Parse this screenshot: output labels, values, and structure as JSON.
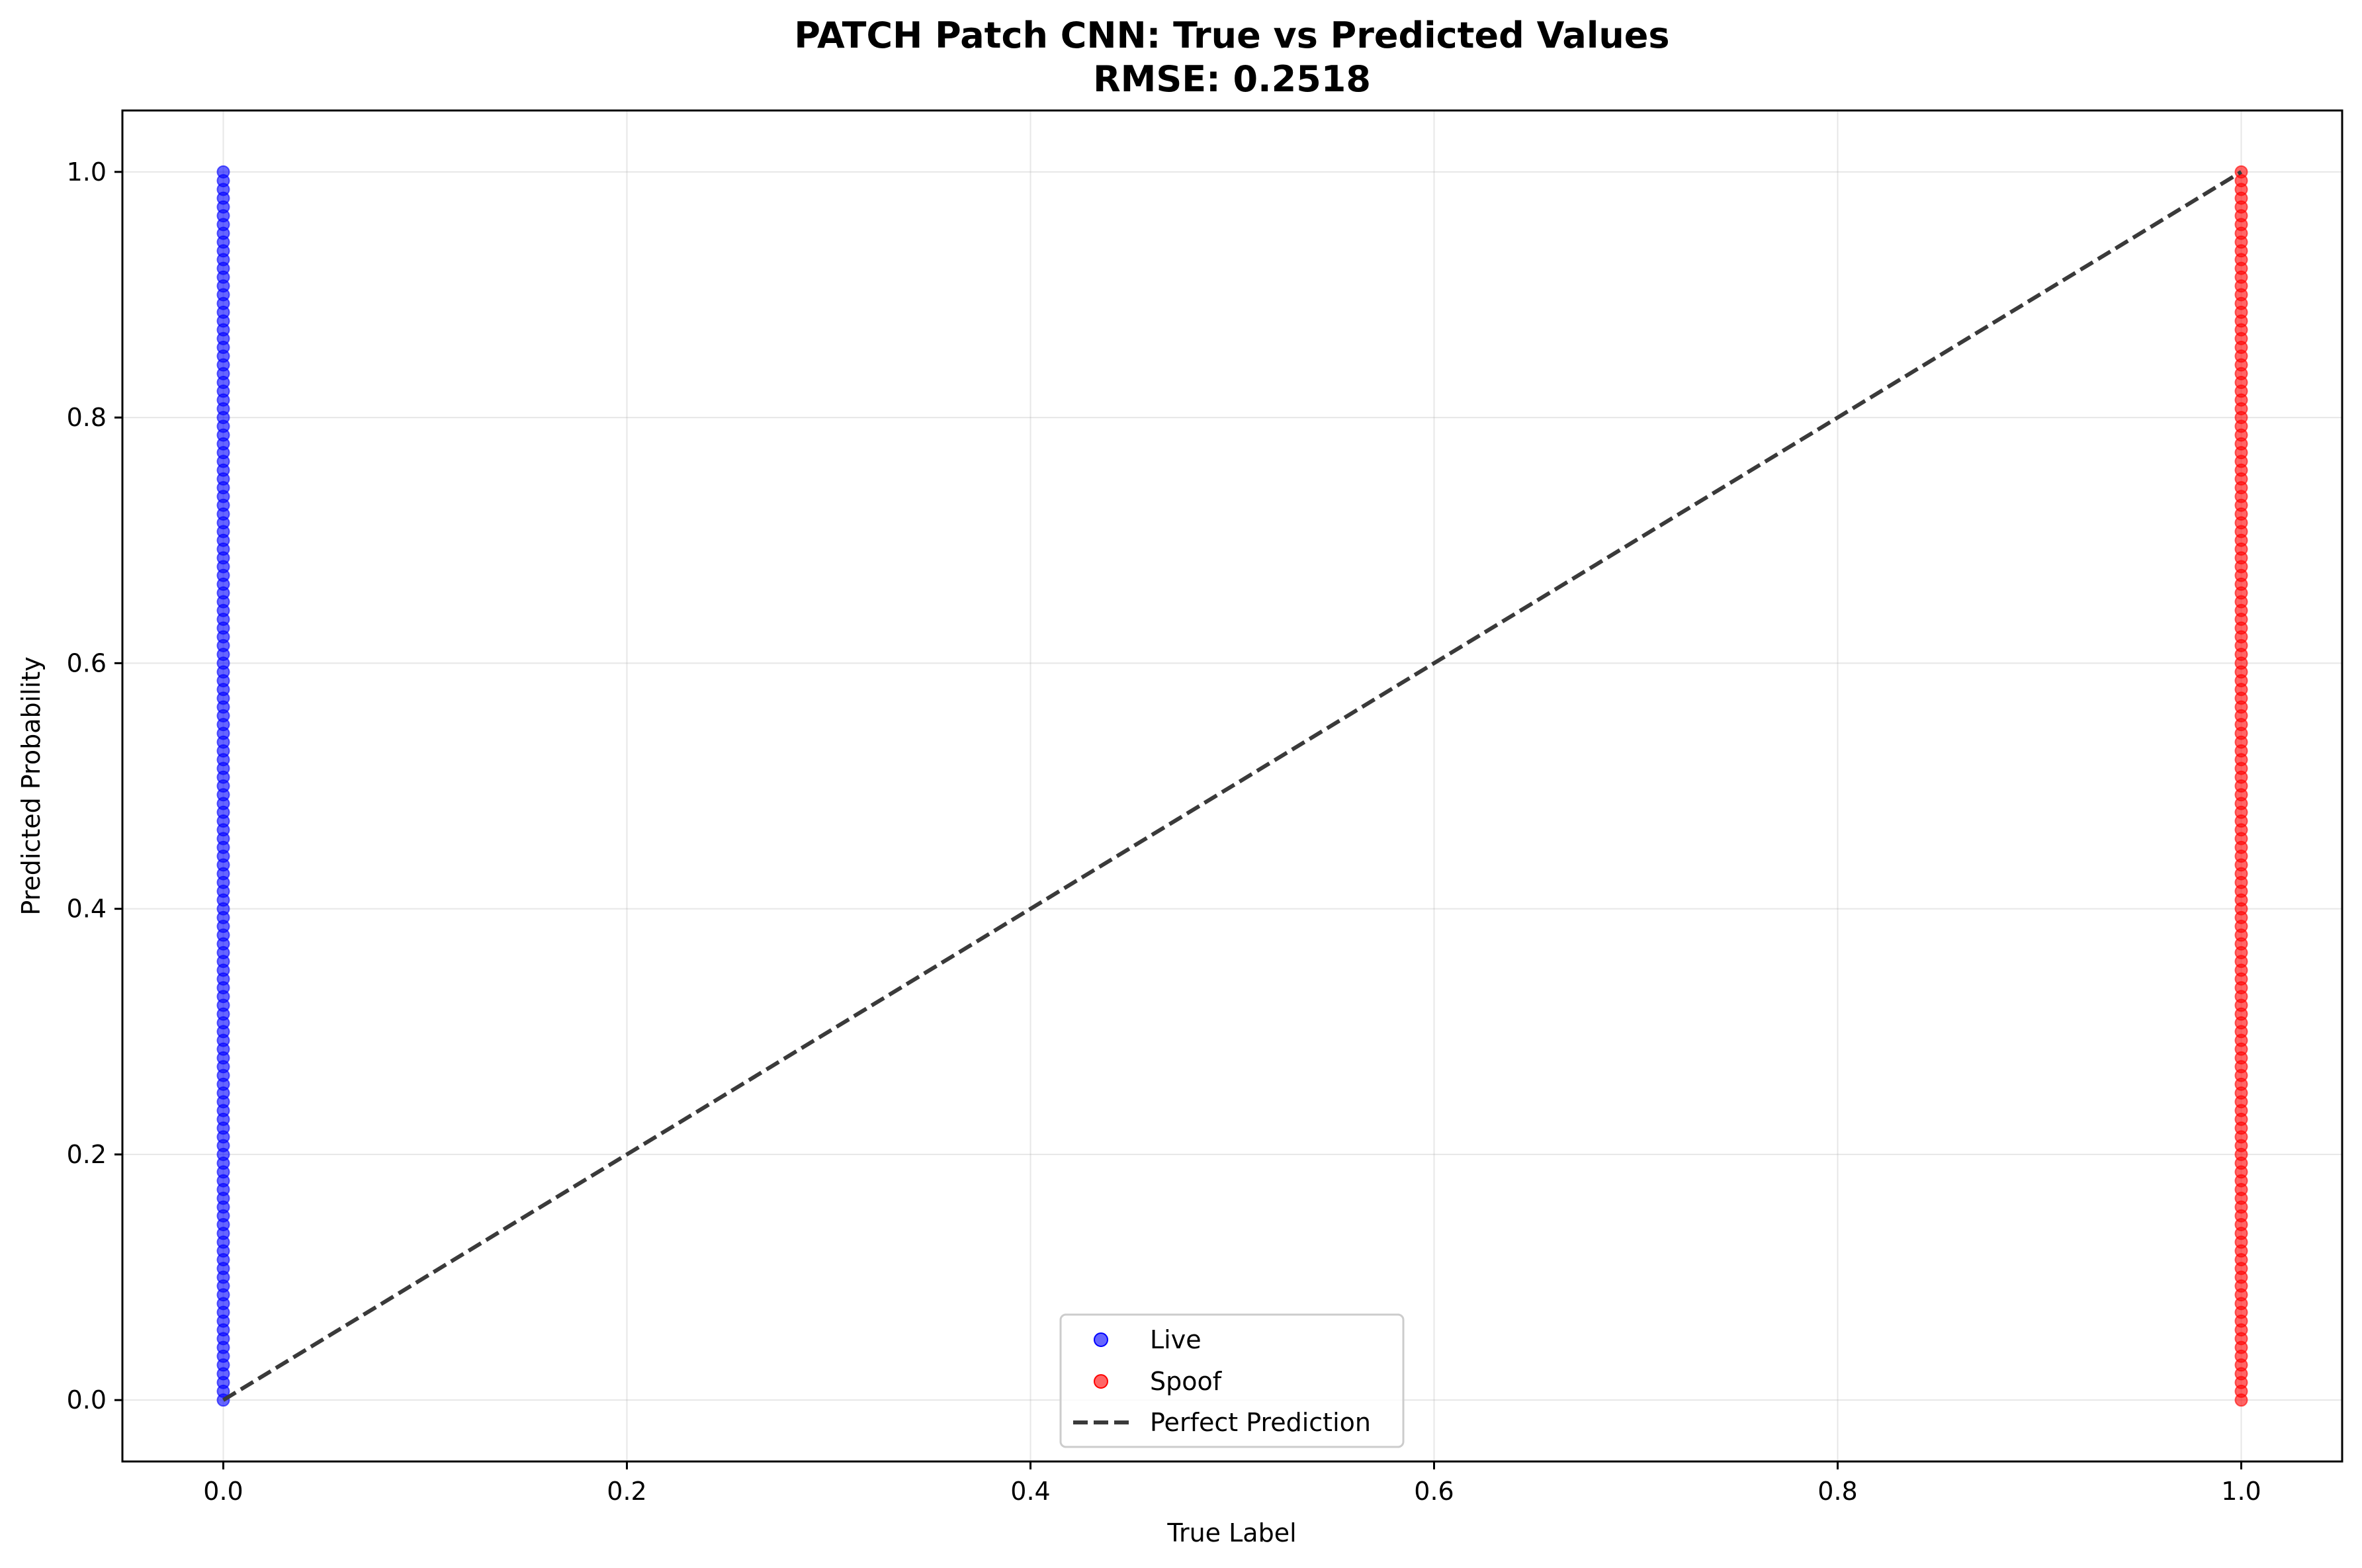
{
  "chart_data": {
    "type": "scatter",
    "title": "PATCH Patch CNN: True vs Predicted Values",
    "subtitle": "RMSE: 0.2518",
    "xlabel": "True Label",
    "ylabel": "Predicted Probability",
    "xlim": [
      -0.05,
      1.05
    ],
    "ylim": [
      -0.05,
      1.05
    ],
    "x_ticks": [
      "0.0",
      "0.2",
      "0.4",
      "0.6",
      "0.8",
      "1.0"
    ],
    "x_tick_values": [
      0.0,
      0.2,
      0.4,
      0.6,
      0.8,
      1.0
    ],
    "y_ticks": [
      "0.0",
      "0.2",
      "0.4",
      "0.6",
      "0.8",
      "1.0"
    ],
    "y_tick_values": [
      0.0,
      0.2,
      0.4,
      0.6,
      0.8,
      1.0
    ],
    "grid": true,
    "legend_position": "bottom-center",
    "series": [
      {
        "name": "Live",
        "color": "#0000ff",
        "marker": "circle",
        "x": 0.0,
        "y_range": [
          0.0,
          1.0
        ]
      },
      {
        "name": "Spoof",
        "color": "#ff0000",
        "marker": "circle",
        "x": 1.0,
        "y_range": [
          0.0,
          1.0
        ]
      },
      {
        "name": "Perfect Prediction",
        "color": "#3a3a3a",
        "marker": "dashed-line",
        "from": [
          0.0,
          0.0
        ],
        "to": [
          1.0,
          1.0
        ]
      }
    ]
  }
}
